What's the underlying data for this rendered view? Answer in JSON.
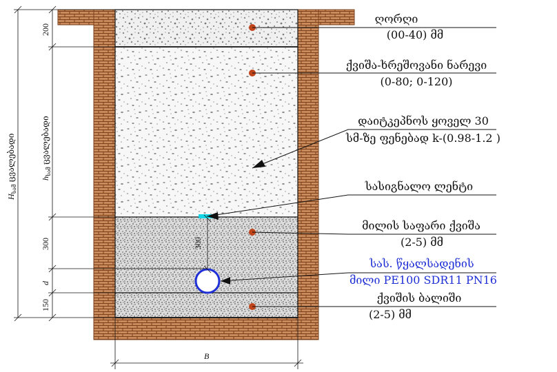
{
  "labels": {
    "gravel_top": "ღორღი",
    "gravel_top_size": "(00-40) მმ",
    "sand_gravel": "ქვიშა-ხრეშოვანი ნარევი",
    "sand_gravel_size": "(0-80;  0-120)",
    "compaction_line1": "დაიტკეპნოს ყოველ 30",
    "compaction_line2": "სმ-ზე ფენებად k-(0.98-1.2 )",
    "warning_tape": "სასიგნალო ლენტი",
    "fine_sand": "მილის საფარი ქვიშა",
    "fine_sand_size": "(2-5) მმ",
    "pipe_line1": "სას.  წყალსადენის",
    "pipe_line2": "მილი  PE100 SDR11 PN16",
    "bed_sand": "ქვიშის ბალიში",
    "bed_sand_size": "(2-5) მმ"
  },
  "dimensions": {
    "top_layer": "200",
    "middle_layer_h": "h",
    "middle_layer_sub": "სამ",
    "middle_layer_word": "ცვალებადი",
    "total_h": "H",
    "total_sub": "სამ",
    "total_word": "ცვალებადი",
    "cover_layer": "300",
    "pipe_dia": "d",
    "bed_layer": "150",
    "width": "B",
    "inner_depth": "300"
  },
  "colors": {
    "brick": "#c98b5b",
    "brick_line": "#7a3e1a",
    "dot": "#c0441a",
    "pipe": "#1f2fd6",
    "tape": "#14d6e6",
    "blue_text": "#1f2fd6"
  }
}
